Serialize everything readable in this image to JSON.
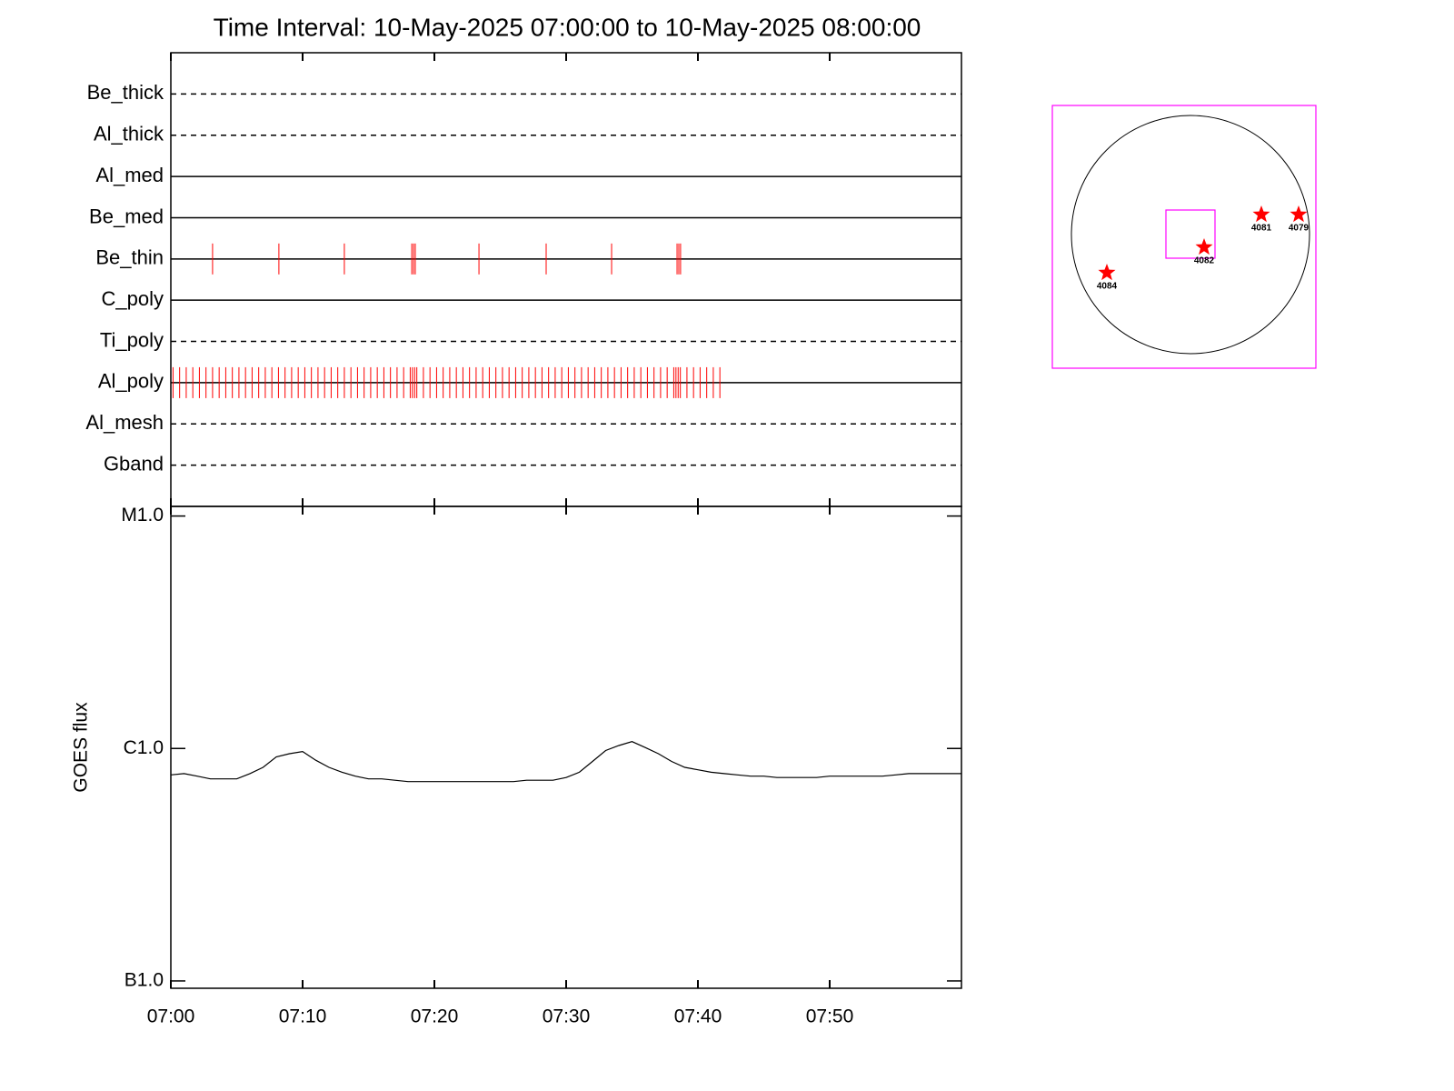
{
  "title": "Time Interval: 10-May-2025 07:00:00 to 10-May-2025 08:00:00",
  "chart_data": [
    {
      "type": "timeline",
      "xlim": [
        "07:00:00",
        "08:00:00"
      ],
      "xticks": [
        "07:00",
        "07:10",
        "07:20",
        "07:30",
        "07:40",
        "07:50"
      ],
      "obs_color": "#ff0000",
      "rows": [
        {
          "label": "Be_thick",
          "line_style": "dashed",
          "obs": []
        },
        {
          "label": "Al_thick",
          "line_style": "dashed",
          "obs": []
        },
        {
          "label": "Al_med",
          "line_style": "solid",
          "obs": []
        },
        {
          "label": "Be_med",
          "line_style": "solid",
          "obs": []
        },
        {
          "label": "Be_thin",
          "line_style": "solid",
          "obs": [
            "07:03:10",
            "07:08:12",
            "07:13:10",
            "07:18:17",
            "07:18:25",
            "07:18:33",
            "07:23:23",
            "07:28:29",
            "07:33:27",
            "07:38:25",
            "07:38:33",
            "07:38:41"
          ]
        },
        {
          "label": "C_poly",
          "line_style": "solid",
          "obs": []
        },
        {
          "label": "Ti_poly",
          "line_style": "dashed",
          "obs": []
        },
        {
          "label": "Al_poly",
          "line_style": "solid",
          "obs": [
            "07:00:10",
            "07:00:40",
            "07:01:10",
            "07:01:40",
            "07:02:10",
            "07:02:40",
            "07:03:10",
            "07:03:40",
            "07:04:10",
            "07:04:40",
            "07:05:10",
            "07:05:40",
            "07:06:10",
            "07:06:40",
            "07:07:10",
            "07:07:40",
            "07:08:10",
            "07:08:40",
            "07:09:10",
            "07:09:40",
            "07:10:10",
            "07:10:40",
            "07:11:10",
            "07:11:40",
            "07:12:10",
            "07:12:40",
            "07:13:10",
            "07:13:40",
            "07:14:10",
            "07:14:40",
            "07:15:10",
            "07:15:40",
            "07:16:10",
            "07:16:40",
            "07:17:10",
            "07:17:40",
            "07:18:10",
            "07:18:20",
            "07:18:30",
            "07:18:40",
            "07:19:10",
            "07:19:40",
            "07:20:10",
            "07:20:40",
            "07:21:10",
            "07:21:40",
            "07:22:10",
            "07:22:40",
            "07:23:10",
            "07:23:40",
            "07:24:10",
            "07:24:40",
            "07:25:10",
            "07:25:40",
            "07:26:10",
            "07:26:40",
            "07:27:10",
            "07:27:40",
            "07:28:10",
            "07:28:40",
            "07:29:10",
            "07:29:40",
            "07:30:10",
            "07:30:40",
            "07:31:10",
            "07:31:40",
            "07:32:10",
            "07:32:40",
            "07:33:10",
            "07:33:40",
            "07:34:10",
            "07:34:40",
            "07:35:10",
            "07:35:40",
            "07:36:10",
            "07:36:40",
            "07:37:10",
            "07:37:40",
            "07:38:10",
            "07:38:20",
            "07:38:30",
            "07:38:40",
            "07:39:10",
            "07:39:40",
            "07:40:10",
            "07:40:40",
            "07:41:10",
            "07:41:40"
          ]
        },
        {
          "label": "Al_mesh",
          "line_style": "dashed",
          "obs": []
        },
        {
          "label": "Gband",
          "line_style": "dashed",
          "obs": []
        }
      ]
    },
    {
      "type": "line",
      "y_label": "GOES flux",
      "log_y": true,
      "color": "#000000",
      "xlim": [
        "07:00",
        "08:00"
      ],
      "xticks": [
        "07:00",
        "07:10",
        "07:20",
        "07:30",
        "07:40",
        "07:50"
      ],
      "ylim": [
        9.3e-08,
        1.1e-05
      ],
      "yticks": [
        {
          "value": 1e-07,
          "label": "B1.0"
        },
        {
          "value": 1e-06,
          "label": "C1.0"
        },
        {
          "value": 1e-05,
          "label": "M1.0"
        }
      ],
      "x": [
        "07:00",
        "07:01",
        "07:02",
        "07:03",
        "07:04",
        "07:05",
        "07:06",
        "07:07",
        "07:08",
        "07:09",
        "07:10",
        "07:11",
        "07:12",
        "07:13",
        "07:14",
        "07:15",
        "07:16",
        "07:17",
        "07:18",
        "07:19",
        "07:20",
        "07:21",
        "07:22",
        "07:23",
        "07:24",
        "07:25",
        "07:26",
        "07:27",
        "07:28",
        "07:29",
        "07:30",
        "07:31",
        "07:32",
        "07:33",
        "07:34",
        "07:35",
        "07:36",
        "07:37",
        "07:38",
        "07:39",
        "07:40",
        "07:41",
        "07:42",
        "07:43",
        "07:44",
        "07:45",
        "07:46",
        "07:47",
        "07:48",
        "07:49",
        "07:50",
        "07:51",
        "07:52",
        "07:53",
        "07:54",
        "07:55",
        "07:56",
        "07:57",
        "07:58",
        "07:59",
        "08:00"
      ],
      "values": [
        7.7e-07,
        7.8e-07,
        7.6e-07,
        7.4e-07,
        7.4e-07,
        7.4e-07,
        7.8e-07,
        8.3e-07,
        9.2e-07,
        9.5e-07,
        9.7e-07,
        8.9e-07,
        8.3e-07,
        7.9e-07,
        7.6e-07,
        7.4e-07,
        7.4e-07,
        7.3e-07,
        7.2e-07,
        7.2e-07,
        7.2e-07,
        7.2e-07,
        7.2e-07,
        7.2e-07,
        7.2e-07,
        7.2e-07,
        7.2e-07,
        7.3e-07,
        7.3e-07,
        7.3e-07,
        7.5e-07,
        7.9e-07,
        8.8e-07,
        9.8e-07,
        1.03e-06,
        1.07e-06,
        1.01e-06,
        9.5e-07,
        8.8e-07,
        8.3e-07,
        8.1e-07,
        7.9e-07,
        7.8e-07,
        7.7e-07,
        7.6e-07,
        7.6e-07,
        7.5e-07,
        7.5e-07,
        7.5e-07,
        7.5e-07,
        7.6e-07,
        7.6e-07,
        7.6e-07,
        7.6e-07,
        7.6e-07,
        7.7e-07,
        7.8e-07,
        7.8e-07,
        7.8e-07,
        7.8e-07,
        7.8e-07
      ]
    },
    {
      "type": "sun_map",
      "box_color": "#ff00ff",
      "star_color": "#ff0000",
      "regions": [
        "4081",
        "4079",
        "4082",
        "4084"
      ]
    }
  ]
}
